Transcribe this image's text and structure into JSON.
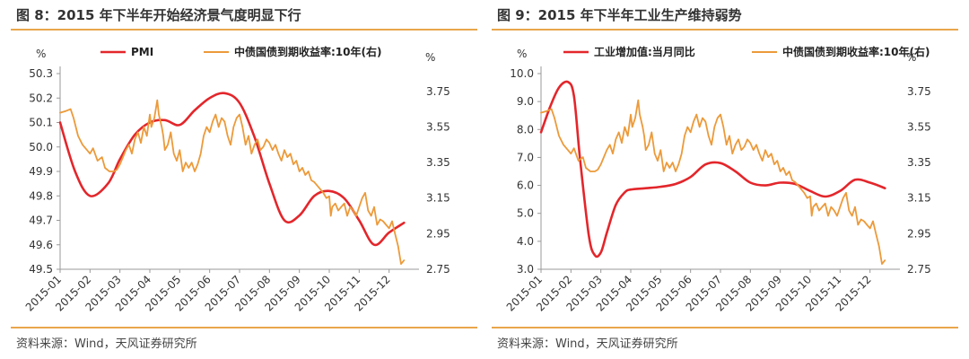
{
  "colors": {
    "accent_rule": "#e9a64b",
    "series_red": "#e3262b",
    "series_orange": "#ec9a3a"
  },
  "panels": [
    {
      "title": "图 8：2015 年下半年开始经济景气度明显下行",
      "source": "资料来源：Wind，天风证券研究所",
      "left_unit": "%",
      "right_unit": "%"
    },
    {
      "title": "图 9：2015 年下半年工业生产维持弱势",
      "source": "资料来源：Wind，天风证券研究所",
      "left_unit": "%",
      "right_unit": "%"
    }
  ],
  "chart_data": [
    {
      "type": "line",
      "title": "图 8：2015 年下半年开始经济景气度明显下行",
      "categories": [
        "2015-01",
        "2015-02",
        "2015-03",
        "2015-04",
        "2015-05",
        "2015-06",
        "2015-07",
        "2015-08",
        "2015-09",
        "2015-10",
        "2015-11",
        "2015-12"
      ],
      "left_axis": {
        "ylim": [
          49.5,
          50.3
        ],
        "ticks": [
          "49.5",
          "49.6",
          "49.7",
          "49.8",
          "49.9",
          "50.0",
          "50.1",
          "50.2",
          "50.3"
        ]
      },
      "right_axis": {
        "ylim": [
          2.75,
          3.85
        ],
        "ticks": [
          "2.75",
          "2.95",
          "3.15",
          "3.35",
          "3.55",
          "3.75"
        ]
      },
      "legend": "top",
      "series": [
        {
          "name": "PMI",
          "axis": "left",
          "style": "smooth",
          "x": [
            0,
            0.5,
            1,
            1.6,
            2,
            2.5,
            3,
            3.5,
            4,
            4.5,
            5,
            5.5,
            6,
            6.5,
            7,
            7.5,
            8,
            8.5,
            9,
            9.5,
            10,
            10.5,
            11,
            11.5
          ],
          "values": [
            50.1,
            49.9,
            49.8,
            49.85,
            49.95,
            50.05,
            50.1,
            50.11,
            50.09,
            50.15,
            50.2,
            50.22,
            50.18,
            50.04,
            49.85,
            49.7,
            49.72,
            49.8,
            49.82,
            49.79,
            49.7,
            49.6,
            49.65,
            49.69
          ]
        },
        {
          "name": "中债国债到期收益率:10年(右)",
          "axis": "right",
          "x": [
            0,
            0.2,
            0.35,
            0.45,
            0.6,
            0.75,
            0.9,
            1.0,
            1.1,
            1.25,
            1.4,
            1.5,
            1.65,
            1.8,
            1.9,
            2.0,
            2.1,
            2.2,
            2.3,
            2.4,
            2.5,
            2.6,
            2.7,
            2.8,
            2.9,
            3.0,
            3.05,
            3.15,
            3.25,
            3.3,
            3.4,
            3.45,
            3.5,
            3.6,
            3.7,
            3.8,
            3.9,
            4.0,
            4.1,
            4.2,
            4.3,
            4.4,
            4.5,
            4.6,
            4.7,
            4.8,
            4.9,
            5.0,
            5.1,
            5.2,
            5.3,
            5.4,
            5.5,
            5.6,
            5.7,
            5.8,
            5.9,
            6.0,
            6.1,
            6.2,
            6.3,
            6.4,
            6.5,
            6.6,
            6.7,
            6.8,
            6.9,
            7.0,
            7.1,
            7.2,
            7.3,
            7.4,
            7.5,
            7.6,
            7.7,
            7.8,
            7.9,
            8.0,
            8.1,
            8.2,
            8.3,
            8.4,
            8.5,
            8.6,
            8.7,
            8.8,
            8.9,
            9.0,
            9.05,
            9.1,
            9.2,
            9.3,
            9.4,
            9.5,
            9.6,
            9.7,
            9.8,
            9.9,
            10.0,
            10.1,
            10.2,
            10.3,
            10.4,
            10.5,
            10.6,
            10.7,
            10.8,
            10.9,
            11.0,
            11.1,
            11.2,
            11.3,
            11.4,
            11.5
          ],
          "values": [
            3.63,
            3.64,
            3.65,
            3.6,
            3.5,
            3.45,
            3.42,
            3.4,
            3.43,
            3.36,
            3.38,
            3.32,
            3.3,
            3.3,
            3.31,
            3.34,
            3.38,
            3.42,
            3.45,
            3.4,
            3.48,
            3.52,
            3.46,
            3.55,
            3.5,
            3.62,
            3.55,
            3.6,
            3.7,
            3.62,
            3.55,
            3.5,
            3.42,
            3.45,
            3.52,
            3.4,
            3.36,
            3.42,
            3.3,
            3.35,
            3.32,
            3.35,
            3.3,
            3.34,
            3.4,
            3.5,
            3.55,
            3.52,
            3.58,
            3.62,
            3.55,
            3.6,
            3.58,
            3.5,
            3.45,
            3.55,
            3.6,
            3.62,
            3.55,
            3.45,
            3.5,
            3.4,
            3.45,
            3.48,
            3.42,
            3.44,
            3.48,
            3.46,
            3.42,
            3.45,
            3.4,
            3.36,
            3.42,
            3.38,
            3.4,
            3.34,
            3.36,
            3.3,
            3.32,
            3.28,
            3.3,
            3.25,
            3.24,
            3.22,
            3.2,
            3.18,
            3.15,
            3.16,
            3.05,
            3.1,
            3.12,
            3.08,
            3.1,
            3.12,
            3.05,
            3.1,
            3.08,
            3.05,
            3.1,
            3.15,
            3.18,
            3.08,
            3.05,
            3.1,
            3.0,
            3.03,
            3.02,
            3.0,
            2.98,
            3.02,
            2.95,
            2.88,
            2.78,
            2.8
          ]
        }
      ]
    },
    {
      "type": "line",
      "title": "图 9：2015 年下半年工业生产维持弱势",
      "categories": [
        "2015-01",
        "2015-02",
        "2015-03",
        "2015-04",
        "2015-05",
        "2015-06",
        "2015-07",
        "2015-08",
        "2015-09",
        "2015-10",
        "2015-11",
        "2015-12"
      ],
      "left_axis": {
        "ylim": [
          3.0,
          10.0
        ],
        "ticks": [
          "3.0",
          "4.0",
          "5.0",
          "6.0",
          "7.0",
          "8.0",
          "9.0",
          "10.0"
        ]
      },
      "right_axis": {
        "ylim": [
          2.75,
          3.85
        ],
        "ticks": [
          "2.75",
          "2.95",
          "3.15",
          "3.35",
          "3.55",
          "3.75"
        ]
      },
      "legend": "top",
      "series": [
        {
          "name": "工业增加值:当月同比",
          "axis": "left",
          "style": "smooth",
          "x": [
            0,
            0.3,
            0.6,
            0.9,
            1.1,
            1.3,
            1.6,
            1.8,
            2.0,
            2.2,
            2.5,
            2.8,
            3.0,
            3.5,
            4.0,
            4.5,
            5.0,
            5.5,
            6.0,
            6.5,
            7.0,
            7.5,
            8.0,
            8.5,
            9.0,
            9.5,
            10.0,
            10.5,
            11.0,
            11.5
          ],
          "values": [
            7.9,
            8.8,
            9.5,
            9.7,
            9.2,
            7.0,
            4.2,
            3.5,
            3.6,
            4.3,
            5.3,
            5.75,
            5.85,
            5.9,
            5.95,
            6.05,
            6.3,
            6.75,
            6.8,
            6.5,
            6.1,
            6.0,
            6.1,
            6.05,
            5.8,
            5.6,
            5.8,
            6.2,
            6.1,
            5.9
          ]
        },
        {
          "name": "中债国债到期收益率:10年(右)",
          "axis": "right",
          "x": [
            0,
            0.2,
            0.35,
            0.45,
            0.6,
            0.75,
            0.9,
            1.0,
            1.1,
            1.25,
            1.4,
            1.5,
            1.65,
            1.8,
            1.9,
            2.0,
            2.1,
            2.2,
            2.3,
            2.4,
            2.5,
            2.6,
            2.7,
            2.8,
            2.9,
            3.0,
            3.05,
            3.15,
            3.25,
            3.3,
            3.4,
            3.45,
            3.5,
            3.6,
            3.7,
            3.8,
            3.9,
            4.0,
            4.1,
            4.2,
            4.3,
            4.4,
            4.5,
            4.6,
            4.7,
            4.8,
            4.9,
            5.0,
            5.1,
            5.2,
            5.3,
            5.4,
            5.5,
            5.6,
            5.7,
            5.8,
            5.9,
            6.0,
            6.1,
            6.2,
            6.3,
            6.4,
            6.5,
            6.6,
            6.7,
            6.8,
            6.9,
            7.0,
            7.1,
            7.2,
            7.3,
            7.4,
            7.5,
            7.6,
            7.7,
            7.8,
            7.9,
            8.0,
            8.1,
            8.2,
            8.3,
            8.4,
            8.5,
            8.6,
            8.7,
            8.8,
            8.9,
            9.0,
            9.05,
            9.1,
            9.2,
            9.3,
            9.4,
            9.5,
            9.6,
            9.7,
            9.8,
            9.9,
            10.0,
            10.1,
            10.2,
            10.3,
            10.4,
            10.5,
            10.6,
            10.7,
            10.8,
            10.9,
            11.0,
            11.1,
            11.2,
            11.3,
            11.4,
            11.5
          ],
          "values": [
            3.63,
            3.64,
            3.65,
            3.6,
            3.5,
            3.45,
            3.42,
            3.4,
            3.43,
            3.36,
            3.38,
            3.32,
            3.3,
            3.3,
            3.31,
            3.34,
            3.38,
            3.42,
            3.45,
            3.4,
            3.48,
            3.52,
            3.46,
            3.55,
            3.5,
            3.62,
            3.55,
            3.6,
            3.7,
            3.62,
            3.55,
            3.5,
            3.42,
            3.45,
            3.52,
            3.4,
            3.36,
            3.42,
            3.3,
            3.35,
            3.32,
            3.35,
            3.3,
            3.34,
            3.4,
            3.5,
            3.55,
            3.52,
            3.58,
            3.62,
            3.55,
            3.6,
            3.58,
            3.5,
            3.45,
            3.55,
            3.6,
            3.62,
            3.55,
            3.45,
            3.5,
            3.4,
            3.45,
            3.48,
            3.42,
            3.44,
            3.48,
            3.46,
            3.42,
            3.45,
            3.4,
            3.36,
            3.42,
            3.38,
            3.4,
            3.34,
            3.36,
            3.3,
            3.32,
            3.28,
            3.3,
            3.25,
            3.24,
            3.22,
            3.2,
            3.18,
            3.15,
            3.16,
            3.05,
            3.1,
            3.12,
            3.08,
            3.1,
            3.12,
            3.05,
            3.1,
            3.08,
            3.05,
            3.1,
            3.15,
            3.18,
            3.08,
            3.05,
            3.1,
            3.0,
            3.03,
            3.02,
            3.0,
            2.98,
            3.02,
            2.95,
            2.88,
            2.78,
            2.8
          ]
        }
      ]
    }
  ]
}
